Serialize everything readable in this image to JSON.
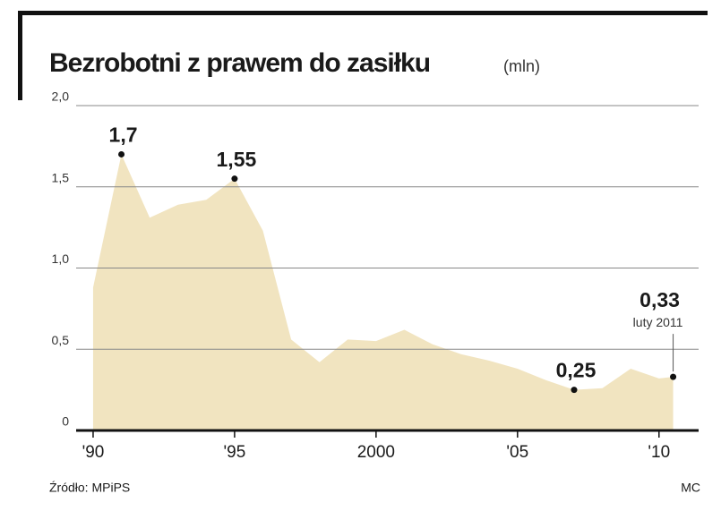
{
  "chart_data": {
    "type": "area",
    "title": "Bezrobotni z prawem do zasiłku",
    "subtitle": "(mln)",
    "x": [
      1990,
      1991,
      1992,
      1993,
      1994,
      1995,
      1996,
      1997,
      1998,
      1999,
      2000,
      2001,
      2002,
      2003,
      2004,
      2005,
      2006,
      2007,
      2008,
      2009,
      2010,
      2010.5
    ],
    "values": [
      0.88,
      1.7,
      1.31,
      1.39,
      1.42,
      1.55,
      1.23,
      0.56,
      0.42,
      0.56,
      0.55,
      0.62,
      0.53,
      0.47,
      0.43,
      0.38,
      0.31,
      0.25,
      0.26,
      0.38,
      0.32,
      0.33
    ],
    "value_labels": [
      null,
      "1,7",
      null,
      null,
      null,
      "1,55",
      null,
      null,
      null,
      null,
      null,
      null,
      null,
      null,
      null,
      null,
      null,
      "0,25",
      null,
      null,
      null,
      "0,33"
    ],
    "annotation": "luty 2011",
    "color": "#f1e4c0",
    "xlim": [
      1989.4,
      2011.4
    ],
    "xticks": [
      {
        "value": 1990,
        "label": "'90"
      },
      {
        "value": 1995,
        "label": "'95"
      },
      2000,
      {
        "value": 2005,
        "label": "'05"
      },
      {
        "value": 2010,
        "label": "'10"
      }
    ],
    "ylim": [
      0,
      2.0
    ],
    "yticks": [
      0,
      {
        "value": 0.5,
        "label": "0,5"
      },
      {
        "value": 1.0,
        "label": "1,0"
      },
      {
        "value": 1.5,
        "label": "1,5"
      },
      {
        "value": 2.0,
        "label": "2,0"
      }
    ],
    "grid": true,
    "source": "Źródło: MPiPS",
    "credit": "MC"
  }
}
